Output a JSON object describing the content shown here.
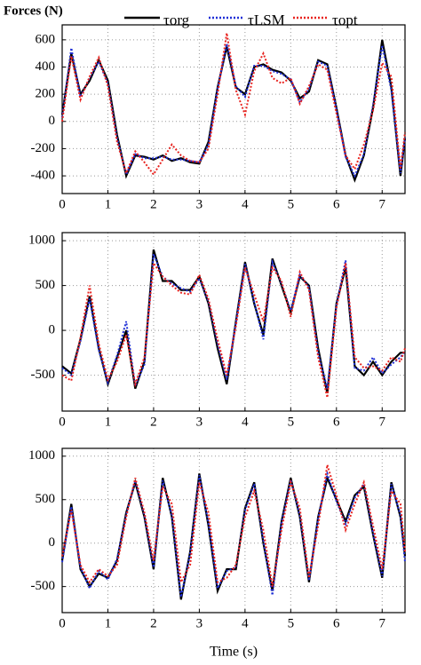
{
  "chart_data": [
    {
      "type": "line",
      "title": "Forces (N)",
      "legend": "top",
      "grid": true,
      "x": [
        0,
        0.2,
        0.4,
        0.6,
        0.8,
        1.0,
        1.2,
        1.4,
        1.6,
        1.8,
        2.0,
        2.2,
        2.4,
        2.6,
        2.8,
        3.0,
        3.2,
        3.4,
        3.6,
        3.8,
        4.0,
        4.2,
        4.4,
        4.6,
        4.8,
        5.0,
        5.2,
        5.4,
        5.6,
        5.8,
        6.0,
        6.2,
        6.4,
        6.6,
        6.8,
        7.0,
        7.2,
        7.4,
        7.5
      ],
      "xlim": [
        0,
        7.5
      ],
      "xticks": [
        0,
        1,
        2,
        3,
        4,
        5,
        6,
        7
      ],
      "ylim": [
        -530,
        710
      ],
      "yticks": [
        -400,
        -200,
        0,
        200,
        400,
        600
      ],
      "series": [
        {
          "name": "τorg",
          "color": "#000000",
          "linestyle": "solid",
          "values": [
            50,
            500,
            200,
            300,
            450,
            300,
            -100,
            -400,
            -250,
            -260,
            -280,
            -250,
            -290,
            -270,
            -300,
            -310,
            -150,
            250,
            550,
            250,
            200,
            400,
            420,
            380,
            360,
            300,
            170,
            220,
            450,
            420,
            100,
            -250,
            -430,
            -250,
            100,
            600,
            250,
            -400,
            -120
          ]
        },
        {
          "name": "τLSM",
          "color": "#1f2fd6",
          "linestyle": "dotted",
          "values": [
            30,
            540,
            180,
            320,
            440,
            280,
            -120,
            -390,
            -240,
            -270,
            -270,
            -260,
            -280,
            -280,
            -290,
            -300,
            -170,
            240,
            570,
            260,
            180,
            410,
            410,
            370,
            350,
            310,
            140,
            240,
            440,
            410,
            90,
            -260,
            -400,
            -240,
            120,
            560,
            230,
            -380,
            -120
          ]
        },
        {
          "name": "τopt",
          "color": "#e8231f",
          "linestyle": "dotted",
          "values": [
            0,
            480,
            160,
            330,
            470,
            260,
            -150,
            -380,
            -220,
            -300,
            -390,
            -280,
            -170,
            -250,
            -290,
            -300,
            -200,
            200,
            650,
            230,
            50,
            370,
            500,
            320,
            280,
            320,
            130,
            260,
            420,
            380,
            60,
            -250,
            -350,
            -170,
            80,
            430,
            330,
            -350,
            -80
          ]
        }
      ]
    },
    {
      "type": "line",
      "grid": true,
      "x": [
        0,
        0.2,
        0.4,
        0.6,
        0.8,
        1.0,
        1.2,
        1.4,
        1.6,
        1.8,
        2.0,
        2.2,
        2.4,
        2.6,
        2.8,
        3.0,
        3.2,
        3.4,
        3.6,
        3.8,
        4.0,
        4.2,
        4.4,
        4.6,
        4.8,
        5.0,
        5.2,
        5.4,
        5.6,
        5.8,
        6.0,
        6.2,
        6.4,
        6.6,
        6.8,
        7.0,
        7.2,
        7.4,
        7.5
      ],
      "xlim": [
        0,
        7.5
      ],
      "xticks": [
        0,
        1,
        2,
        3,
        4,
        5,
        6,
        7
      ],
      "ylim": [
        -900,
        1090
      ],
      "yticks": [
        -500,
        0,
        500,
        1000
      ],
      "series": [
        {
          "color": "#000000",
          "linestyle": "solid",
          "values": [
            -400,
            -480,
            -100,
            380,
            -200,
            -600,
            -300,
            0,
            -650,
            -350,
            900,
            550,
            550,
            450,
            450,
            600,
            300,
            -200,
            -600,
            100,
            760,
            300,
            -50,
            800,
            500,
            200,
            600,
            500,
            -200,
            -700,
            300,
            700,
            -400,
            -500,
            -350,
            -500,
            -350,
            -250,
            -250
          ]
        },
        {
          "color": "#1f2fd6",
          "linestyle": "dotted",
          "values": [
            -420,
            -500,
            -120,
            350,
            -220,
            -580,
            -280,
            100,
            -620,
            -380,
            850,
            600,
            520,
            470,
            430,
            580,
            320,
            -150,
            -550,
            80,
            740,
            320,
            -100,
            760,
            520,
            220,
            620,
            480,
            -250,
            -650,
            280,
            780,
            -420,
            -450,
            -300,
            -480,
            -380,
            -300,
            -230
          ]
        },
        {
          "color": "#e8231f",
          "linestyle": "dotted",
          "values": [
            -500,
            -560,
            -80,
            500,
            -150,
            -550,
            -350,
            -50,
            -600,
            -300,
            750,
            600,
            500,
            420,
            400,
            620,
            350,
            -100,
            -500,
            50,
            700,
            400,
            100,
            700,
            550,
            150,
            650,
            450,
            -300,
            -750,
            250,
            750,
            -300,
            -420,
            -400,
            -450,
            -300,
            -350,
            -200
          ]
        }
      ]
    },
    {
      "type": "line",
      "grid": true,
      "xlabel": "Time (s)",
      "x": [
        0,
        0.2,
        0.4,
        0.6,
        0.8,
        1.0,
        1.2,
        1.4,
        1.6,
        1.8,
        2.0,
        2.2,
        2.4,
        2.6,
        2.8,
        3.0,
        3.2,
        3.4,
        3.6,
        3.8,
        4.0,
        4.2,
        4.4,
        4.6,
        4.8,
        5.0,
        5.2,
        5.4,
        5.6,
        5.8,
        6.0,
        6.2,
        6.4,
        6.6,
        6.8,
        7.0,
        7.2,
        7.4,
        7.5
      ],
      "xlim": [
        0,
        7.5
      ],
      "xticks": [
        0,
        1,
        2,
        3,
        4,
        5,
        6,
        7
      ],
      "ylim": [
        -800,
        1090
      ],
      "yticks": [
        -500,
        0,
        500,
        1000
      ],
      "series": [
        {
          "color": "#000000",
          "linestyle": "solid",
          "values": [
            -200,
            450,
            -300,
            -500,
            -350,
            -400,
            -200,
            350,
            700,
            300,
            -300,
            750,
            300,
            -650,
            -100,
            800,
            200,
            -550,
            -300,
            -300,
            400,
            700,
            0,
            -550,
            250,
            750,
            300,
            -450,
            300,
            750,
            500,
            250,
            550,
            650,
            100,
            -400,
            700,
            300,
            -150
          ]
        },
        {
          "color": "#1f2fd6",
          "linestyle": "dotted",
          "values": [
            -220,
            420,
            -280,
            -520,
            -320,
            -420,
            -180,
            330,
            720,
            320,
            -280,
            720,
            320,
            -620,
            -120,
            780,
            230,
            -520,
            -320,
            -280,
            380,
            680,
            30,
            -600,
            230,
            730,
            320,
            -430,
            280,
            800,
            480,
            220,
            520,
            680,
            120,
            -380,
            680,
            320,
            -220
          ]
        },
        {
          "color": "#e8231f",
          "linestyle": "dotted",
          "values": [
            -150,
            380,
            -250,
            -450,
            -300,
            -380,
            -250,
            300,
            750,
            350,
            -200,
            650,
            450,
            -450,
            -250,
            700,
            350,
            -450,
            -400,
            -250,
            300,
            600,
            150,
            -500,
            150,
            700,
            400,
            -400,
            200,
            900,
            550,
            150,
            450,
            700,
            200,
            -300,
            600,
            450,
            -100
          ]
        }
      ]
    }
  ]
}
